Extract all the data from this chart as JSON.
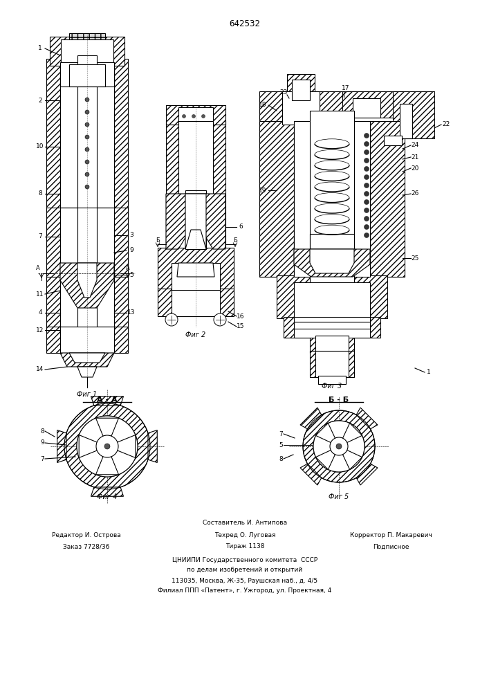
{
  "title": "642532",
  "bg_color": "#ffffff",
  "fig1_label": "Фиг 1",
  "fig2_label": "Фиг 2",
  "fig3_label": "Фиг 3",
  "fig4_label": "Фиг 4",
  "fig5_label": "Фиг 5",
  "bottom_text_line1": "Составитель И. Антипова",
  "bottom_text_line2_left": "Редактор И. Острова",
  "bottom_text_line2_mid": "Техред О. Луговая",
  "bottom_text_line2_right": "Корректор П. Макаревич",
  "bottom_text_line3_left": "Заказ 7728/36",
  "bottom_text_line3_mid": "Тираж 1138",
  "bottom_text_line3_right": "Подписное",
  "bottom_text_line4": "ЦНИИПИ Государственного комитета  СССР",
  "bottom_text_line5": "по делам изобретений и открытий",
  "bottom_text_line6": "113035, Москва, Ж-35, Раушская наб., д. 4/5",
  "bottom_text_line7": "Филиал ППП «Патент», г. Ужгород, ул. Проектная, 4",
  "lw": 0.8
}
